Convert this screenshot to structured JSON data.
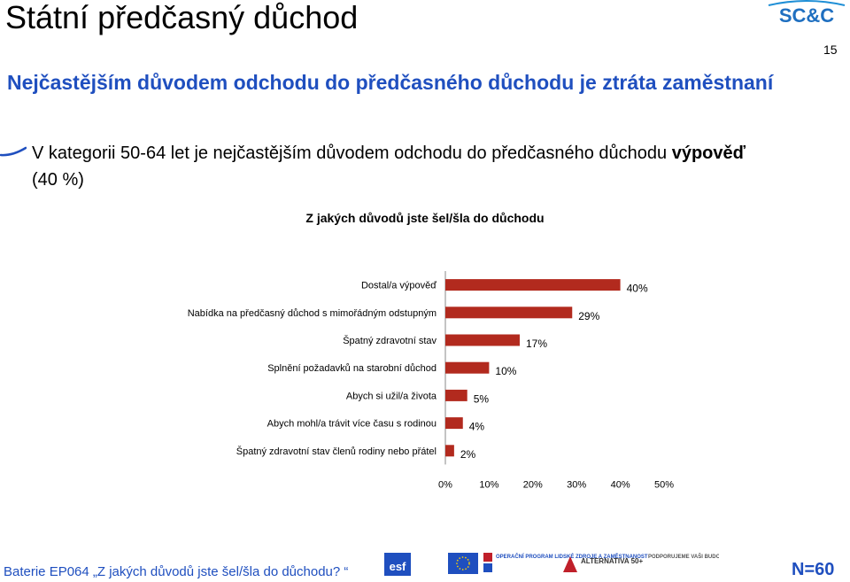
{
  "header": {
    "title": "Státní předčasný důchod",
    "logo_text": "SC&C",
    "page_number": "15"
  },
  "subtitle": "Nejčastějším důvodem odchodu do předčasného důchodu je ztráta zaměstnaní",
  "bullet": {
    "text_plain": "V kategorii 50-64 let je nejčastějším důvodem odchodu do předčasného důchodu ",
    "text_bold": "výpověď",
    "text_after": "(40 %)"
  },
  "chart_data": {
    "type": "bar",
    "orientation": "horizontal",
    "title": "Z jakých důvodů jste šel/šla do důchodu",
    "categories": [
      "Dostal/a výpověď",
      "Nabídka na předčasný důchod s mimořádným odstupným",
      "Špatný zdravotní stav",
      "Splnění požadavků na starobní důchod",
      "Abych si užil/a života",
      "Abych mohl/a trávit více času s rodinou",
      "Špatný zdravotní stav členů rodiny nebo přátel"
    ],
    "values": [
      40,
      29,
      17,
      10,
      5,
      4,
      2
    ],
    "value_labels": [
      "40%",
      "29%",
      "17%",
      "10%",
      "5%",
      "4%",
      "2%"
    ],
    "xlim": [
      0,
      50
    ],
    "x_ticks": [
      0,
      10,
      20,
      30,
      40,
      50
    ],
    "x_tick_labels": [
      "0%",
      "10%",
      "20%",
      "30%",
      "40%",
      "50%"
    ],
    "grid": false,
    "bar_color": "#b22a1e"
  },
  "footer": {
    "source": "Baterie EP064 „Z jakých důvodů jste šel/šla do důchodu? “",
    "n": "N=60",
    "logo_labels": [
      "esf",
      "OPERAČNÍ PROGRAM LIDSKÉ ZDROJE A ZAMĚSTNANOST",
      "ALTERNATIVA 50+",
      "PODPORUJEME VAŠI BUDOUCNOST www.esfcr.cz"
    ]
  },
  "colors": {
    "title_blue": "#1f4fbf",
    "bar_red": "#b22a1e"
  }
}
